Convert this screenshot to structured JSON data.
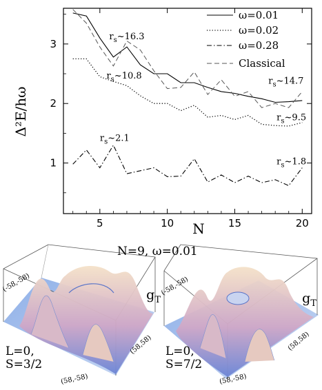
{
  "chart_data": {
    "type": "line",
    "ylabel": "Δ²E/hω",
    "xlabel": "N",
    "xlim": [
      2.3,
      20.7
    ],
    "ylim": [
      0.15,
      3.6
    ],
    "xticks": [
      5,
      10,
      15,
      20
    ],
    "yticks": [
      1,
      2,
      3
    ],
    "series": [
      {
        "name": "ω=0.01",
        "style": "solid",
        "x": [
          3,
          4,
          5,
          6,
          7,
          8,
          9,
          10,
          11,
          12,
          13,
          14,
          15,
          16,
          17,
          18,
          19,
          20
        ],
        "y": [
          3.52,
          3.47,
          3.1,
          2.78,
          2.95,
          2.65,
          2.5,
          2.5,
          2.35,
          2.35,
          2.27,
          2.2,
          2.17,
          2.12,
          2.08,
          2.02,
          2.03,
          2.05
        ]
      },
      {
        "name": "ω=0.02",
        "style": "dotted",
        "x": [
          3,
          4,
          5,
          6,
          7,
          8,
          9,
          10,
          11,
          12,
          13,
          14,
          15,
          16,
          17,
          18,
          19,
          20
        ],
        "y": [
          2.75,
          2.75,
          2.45,
          2.37,
          2.3,
          2.13,
          2.0,
          2.0,
          1.88,
          1.97,
          1.77,
          1.8,
          1.73,
          1.8,
          1.65,
          1.63,
          1.62,
          1.68
        ]
      },
      {
        "name": "ω=0.28",
        "style": "dashdot",
        "x": [
          3,
          4,
          5,
          6,
          7,
          8,
          9,
          10,
          11,
          12,
          13,
          14,
          15,
          16,
          17,
          18,
          19,
          20
        ],
        "y": [
          0.98,
          1.22,
          0.92,
          1.3,
          0.82,
          0.87,
          0.92,
          0.77,
          0.78,
          1.07,
          0.68,
          0.8,
          0.67,
          0.78,
          0.67,
          0.72,
          0.62,
          0.92
        ]
      },
      {
        "name": "Classical",
        "style": "dashed",
        "x": [
          3,
          4,
          5,
          6,
          7,
          8,
          9,
          10,
          11,
          12,
          13,
          14,
          15,
          16,
          17,
          18,
          19,
          20
        ],
        "y": [
          3.58,
          3.35,
          2.95,
          2.63,
          3.05,
          2.9,
          2.55,
          2.25,
          2.27,
          2.53,
          2.15,
          2.4,
          2.12,
          2.2,
          1.93,
          2.0,
          1.93,
          2.2
        ]
      }
    ],
    "annotations": [
      {
        "base": "r",
        "sub": "s",
        "text": "~16.3",
        "x": 7.0,
        "y": 3.08
      },
      {
        "base": "r",
        "sub": "s",
        "text": "~10.8",
        "x": 6.8,
        "y": 2.42
      },
      {
        "base": "r",
        "sub": "s",
        "text": "~2.1",
        "x": 6.1,
        "y": 1.37
      },
      {
        "base": "r",
        "sub": "s",
        "text": "~14.7",
        "x": 18.8,
        "y": 2.33
      },
      {
        "base": "r",
        "sub": "s",
        "text": "~9.5",
        "x": 19.2,
        "y": 1.72
      },
      {
        "base": "r",
        "sub": "s",
        "text": "~1.8",
        "x": 19.2,
        "y": 0.98
      }
    ],
    "legend_placement": "top-right"
  },
  "panels": {
    "title": "N=9, ω=0.01",
    "left": {
      "func": "g",
      "func_sub": "T",
      "line1": "L=0,",
      "line2": "S=3/2",
      "corner_tl": "(-58,-58)",
      "corner_right": "(58,58)",
      "corner_bottom": "(58,-58)"
    },
    "right": {
      "func": "g",
      "func_sub": "T",
      "line1": "L=0,",
      "line2": "S=7/2",
      "corner_tl": "(-58,-58)",
      "corner_right": "(58,58)",
      "corner_bottom": "(58,-58)"
    }
  }
}
